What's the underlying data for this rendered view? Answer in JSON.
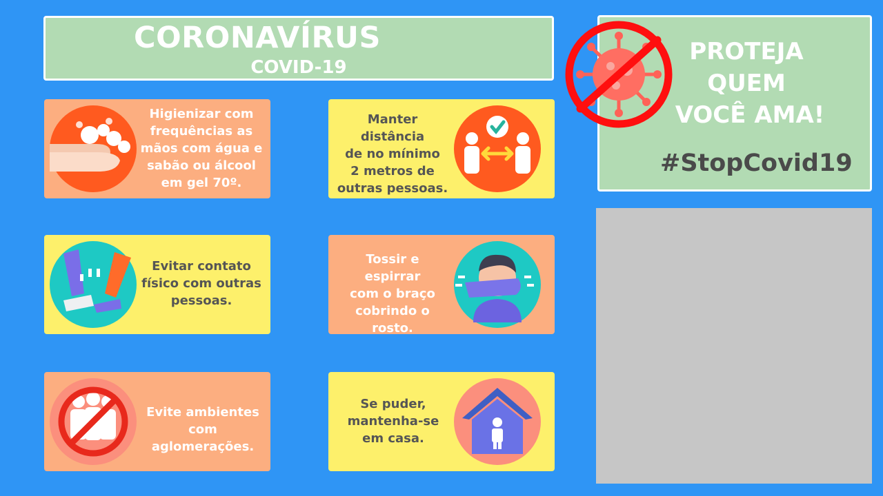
{
  "header": {
    "title": "CORONAVÍRUS",
    "subtitle": "COVID-19"
  },
  "cards": [
    {
      "text": "Higienizar com\nfrequências as\nmãos com água e\nsabão ou álcool\nem gel 70º.",
      "icon": "hand-washing-icon"
    },
    {
      "text": "Manter distância\nde no mínimo\n2 metros de\noutras pessoas.",
      "icon": "social-distance-icon"
    },
    {
      "text": "Evitar contato\nfísico com outras\npessoas.",
      "icon": "foot-bump-icon"
    },
    {
      "text": "Tossir e espirrar\ncom o braço\ncobrindo o\nrosto.",
      "icon": "cough-elbow-icon"
    },
    {
      "text": "Evite ambientes\ncom aglomerações.",
      "icon": "no-crowd-icon"
    },
    {
      "text": "Se puder,\nmantenha-se\nem casa.",
      "icon": "stay-home-icon"
    }
  ],
  "promo": {
    "line1": "PROTEJA",
    "line2": "QUEM",
    "line3": "VOCÊ AMA!",
    "hashtag": "#StopCovid19",
    "icon": "no-virus-icon"
  },
  "colors": {
    "background": "#2f95f5",
    "green": "#b2dbb3",
    "orange": "#fcae80",
    "yellow": "#fdf06b",
    "gray_panel": "#c6c6c6"
  }
}
